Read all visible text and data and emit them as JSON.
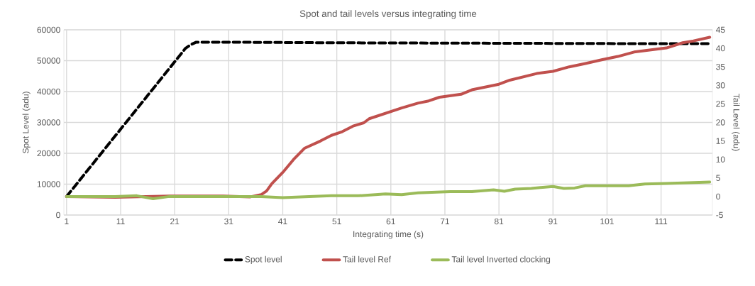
{
  "chart_data": {
    "type": "line",
    "title": "Spot and tail levels versus integrating time",
    "xlabel": "Integrating time (s)",
    "ylabel": "Spot Level (adu)",
    "y2label": "Tail Level (adu)",
    "xlim": [
      0.5,
      120.5
    ],
    "xticks": [
      1,
      11,
      21,
      31,
      41,
      51,
      61,
      71,
      81,
      91,
      101,
      111
    ],
    "ylim": [
      0,
      60000
    ],
    "yticks": [
      0,
      10000,
      20000,
      30000,
      40000,
      50000,
      60000
    ],
    "y2lim": [
      -5,
      45
    ],
    "y2ticks": [
      -5,
      0,
      5,
      10,
      15,
      20,
      25,
      30,
      35,
      40,
      45
    ],
    "grid": true,
    "legend": "bottom",
    "series": [
      {
        "name": "Spot level",
        "color": "#000000",
        "line_style": "dashed",
        "x": [
          1,
          23,
          24,
          25,
          30,
          50,
          70,
          90,
          110,
          120
        ],
        "values": [
          6000,
          54000,
          55200,
          56000,
          56000,
          55800,
          55700,
          55600,
          55500,
          55500
        ]
      },
      {
        "name": "Tail level Ref",
        "color": "#c0504d",
        "line_style": "solid",
        "axis": "y2",
        "x": [
          1,
          10,
          20,
          30,
          35,
          37,
          38,
          39,
          41,
          43,
          45,
          48,
          50,
          52,
          54,
          56,
          57,
          63,
          66,
          68,
          70,
          74,
          76,
          81,
          83,
          88,
          91,
          94,
          97,
          100,
          103,
          106,
          112,
          115,
          117,
          120
        ],
        "values": [
          0,
          -0.2,
          0.1,
          0.1,
          -0.1,
          0.5,
          1.5,
          3.5,
          6.5,
          10,
          13,
          15,
          16.5,
          17.5,
          19,
          19.9,
          21,
          23.9,
          25.2,
          25.8,
          26.8,
          27.6,
          28.8,
          30.3,
          31.4,
          33.2,
          33.8,
          35,
          35.9,
          36.9,
          37.8,
          39,
          40.1,
          41.5,
          42,
          43
        ]
      },
      {
        "name": "Tail level Inverted clocking",
        "color": "#9bbb59",
        "line_style": "solid",
        "axis": "y2",
        "x": [
          1,
          10,
          14,
          17,
          20,
          30,
          37,
          41,
          50,
          55,
          60,
          63,
          66,
          72,
          76,
          80,
          82,
          84,
          87,
          91,
          93,
          95,
          97,
          105,
          108,
          112,
          120
        ],
        "values": [
          0,
          0,
          0.2,
          -0.6,
          0,
          0,
          0,
          -0.3,
          0.2,
          0.2,
          0.7,
          0.5,
          1,
          1.3,
          1.3,
          1.8,
          1.4,
          2,
          2.2,
          2.7,
          2.2,
          2.3,
          2.9,
          2.9,
          3.4,
          3.5,
          3.9
        ]
      }
    ]
  }
}
